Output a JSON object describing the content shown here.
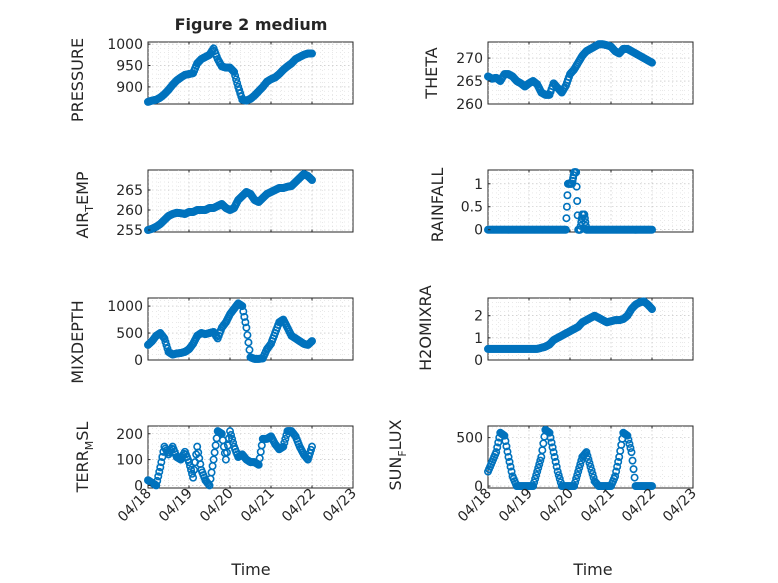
{
  "figure": {
    "title": "Figure 2 medium"
  },
  "chart_data": [
    {
      "type": "scatter",
      "name": "PRESSURE",
      "ylabel": "PRESSURE",
      "xlabel": "",
      "xlim": [
        0,
        5
      ],
      "ylim": [
        860,
        1005
      ],
      "yticks": [
        900,
        950,
        1000
      ],
      "ytick_labels": [
        "900",
        "950",
        "1000"
      ],
      "xticks": [
        0,
        1,
        2,
        3,
        4,
        5
      ],
      "xtick_labels": [],
      "grid": true,
      "marker": "o",
      "x": [
        0,
        0.1,
        0.2,
        0.3,
        0.4,
        0.5,
        0.6,
        0.7,
        0.8,
        0.9,
        1.0,
        1.1,
        1.2,
        1.3,
        1.4,
        1.5,
        1.6,
        1.7,
        1.8,
        1.9,
        2.0,
        2.1,
        2.2,
        2.3,
        2.4,
        2.5,
        2.6,
        2.7,
        2.8,
        2.9,
        3.0,
        3.1,
        3.2,
        3.3,
        3.4,
        3.5,
        3.6,
        3.7,
        3.8,
        3.9,
        4.0
      ],
      "y": [
        865,
        868,
        870,
        875,
        883,
        893,
        905,
        915,
        922,
        928,
        930,
        932,
        955,
        965,
        970,
        975,
        990,
        965,
        948,
        945,
        945,
        935,
        900,
        870,
        868,
        872,
        880,
        890,
        900,
        912,
        918,
        922,
        930,
        940,
        948,
        955,
        965,
        970,
        975,
        978,
        978
      ]
    },
    {
      "type": "scatter",
      "name": "THETA",
      "ylabel": "THETA",
      "xlabel": "",
      "xlim": [
        0,
        5
      ],
      "ylim": [
        260,
        273.5
      ],
      "yticks": [
        260,
        265,
        270
      ],
      "ytick_labels": [
        "260",
        "265",
        "270"
      ],
      "xticks": [
        0,
        1,
        2,
        3,
        4,
        5
      ],
      "xtick_labels": [],
      "grid": true,
      "marker": "o",
      "x": [
        0,
        0.1,
        0.2,
        0.3,
        0.4,
        0.5,
        0.6,
        0.7,
        0.8,
        0.9,
        1.0,
        1.1,
        1.2,
        1.3,
        1.4,
        1.5,
        1.6,
        1.7,
        1.8,
        1.9,
        2.0,
        2.1,
        2.2,
        2.3,
        2.4,
        2.5,
        2.6,
        2.7,
        2.8,
        2.9,
        3.0,
        3.1,
        3.2,
        3.3,
        3.4,
        3.5,
        3.6,
        3.7,
        3.8,
        3.9,
        4.0
      ],
      "y": [
        266,
        265.5,
        265.7,
        265,
        266.5,
        266.5,
        266,
        265,
        264.5,
        263.8,
        264.5,
        265,
        264.3,
        262.5,
        262,
        262,
        264.5,
        263.5,
        262.5,
        264,
        266.5,
        267.5,
        269,
        270.5,
        271.5,
        272,
        272.5,
        273,
        273,
        272.8,
        272.5,
        271.5,
        271,
        272,
        272,
        271.5,
        271,
        270.5,
        270,
        269.5,
        269
      ]
    },
    {
      "type": "scatter",
      "name": "AIR_TEMP",
      "ylabel": "AIR_TEMP",
      "xlabel": "",
      "xlim": [
        0,
        5
      ],
      "ylim": [
        254.5,
        270
      ],
      "yticks": [
        255,
        260,
        265
      ],
      "ytick_labels": [
        "255",
        "260",
        "265"
      ],
      "xticks": [
        0,
        1,
        2,
        3,
        4,
        5
      ],
      "xtick_labels": [],
      "grid": true,
      "marker": "o",
      "x": [
        0,
        0.1,
        0.2,
        0.3,
        0.4,
        0.5,
        0.6,
        0.7,
        0.8,
        0.9,
        1.0,
        1.1,
        1.2,
        1.3,
        1.4,
        1.5,
        1.6,
        1.7,
        1.8,
        1.9,
        2.0,
        2.1,
        2.2,
        2.3,
        2.4,
        2.5,
        2.6,
        2.7,
        2.8,
        2.9,
        3.0,
        3.1,
        3.2,
        3.3,
        3.4,
        3.5,
        3.6,
        3.7,
        3.8,
        3.9,
        4.0
      ],
      "y": [
        255,
        255.3,
        255.8,
        256.5,
        257.5,
        258.5,
        259,
        259.3,
        259.2,
        259,
        259.5,
        259.5,
        260,
        260,
        260,
        260.5,
        260.5,
        261,
        261.5,
        260.5,
        260,
        260.5,
        262.5,
        263.5,
        264.5,
        264,
        262.5,
        262,
        263,
        264,
        264.5,
        265,
        265.5,
        265.5,
        265.8,
        266,
        267,
        268,
        269,
        268.5,
        267.5
      ]
    },
    {
      "type": "scatter",
      "name": "RAINFALL",
      "ylabel": "RAINFALL",
      "xlabel": "",
      "xlim": [
        0,
        5
      ],
      "ylim": [
        -0.05,
        1.3
      ],
      "yticks": [
        0,
        0.5,
        1
      ],
      "ytick_labels": [
        "0",
        "0.5",
        "1"
      ],
      "xticks": [
        0,
        1,
        2,
        3,
        4,
        5
      ],
      "xtick_labels": [],
      "grid": true,
      "marker": "o",
      "x": [
        0,
        0.1,
        0.2,
        0.3,
        0.4,
        0.5,
        0.6,
        0.7,
        0.8,
        0.9,
        1.0,
        1.1,
        1.2,
        1.3,
        1.4,
        1.5,
        1.6,
        1.7,
        1.8,
        1.9,
        1.95,
        2.0,
        2.05,
        2.1,
        2.15,
        2.2,
        2.25,
        2.3,
        2.35,
        2.4,
        2.5,
        2.6,
        2.7,
        2.8,
        2.9,
        3.0,
        3.1,
        3.2,
        3.3,
        3.4,
        3.5,
        3.6,
        3.7,
        3.8,
        3.9,
        4.0
      ],
      "y": [
        0,
        0,
        0,
        0,
        0,
        0,
        0,
        0,
        0,
        0,
        0,
        0,
        0,
        0,
        0,
        0,
        0,
        0,
        0,
        0,
        1.0,
        1.0,
        1.0,
        1.25,
        1.25,
        0,
        0,
        0.33,
        0.33,
        0,
        0,
        0,
        0,
        0,
        0,
        0,
        0,
        0,
        0,
        0,
        0,
        0,
        0,
        0,
        0,
        0
      ]
    },
    {
      "type": "scatter",
      "name": "MIXDEPTH",
      "ylabel": "MIXDEPTH",
      "xlabel": "",
      "xlim": [
        0,
        5
      ],
      "ylim": [
        0,
        1150
      ],
      "yticks": [
        0,
        500,
        1000
      ],
      "ytick_labels": [
        "0",
        "500",
        "1000"
      ],
      "xticks": [
        0,
        1,
        2,
        3,
        4,
        5
      ],
      "xtick_labels": [],
      "grid": true,
      "marker": "o",
      "x": [
        0,
        0.1,
        0.2,
        0.3,
        0.4,
        0.5,
        0.6,
        0.7,
        0.8,
        0.9,
        1.0,
        1.1,
        1.2,
        1.3,
        1.4,
        1.5,
        1.6,
        1.7,
        1.8,
        1.9,
        2.0,
        2.1,
        2.2,
        2.3,
        2.4,
        2.5,
        2.6,
        2.7,
        2.8,
        2.9,
        3.0,
        3.1,
        3.2,
        3.3,
        3.4,
        3.5,
        3.6,
        3.7,
        3.8,
        3.9,
        4.0
      ],
      "y": [
        280,
        350,
        450,
        500,
        400,
        150,
        100,
        120,
        130,
        150,
        200,
        300,
        450,
        500,
        480,
        500,
        520,
        400,
        600,
        700,
        850,
        950,
        1050,
        1000,
        600,
        50,
        20,
        20,
        30,
        200,
        300,
        500,
        700,
        750,
        600,
        450,
        400,
        350,
        300,
        280,
        350
      ]
    },
    {
      "type": "scatter",
      "name": "H2OMIXRA",
      "ylabel": "H2OMIXRA",
      "xlabel": "",
      "xlim": [
        0,
        5
      ],
      "ylim": [
        0,
        2.8
      ],
      "yticks": [
        0,
        1,
        2
      ],
      "ytick_labels": [
        "0",
        "1",
        "2"
      ],
      "xticks": [
        0,
        1,
        2,
        3,
        4,
        5
      ],
      "xtick_labels": [],
      "grid": true,
      "marker": "o",
      "x": [
        0,
        0.1,
        0.2,
        0.3,
        0.4,
        0.5,
        0.6,
        0.7,
        0.8,
        0.9,
        1.0,
        1.1,
        1.2,
        1.3,
        1.4,
        1.5,
        1.6,
        1.7,
        1.8,
        1.9,
        2.0,
        2.1,
        2.2,
        2.3,
        2.4,
        2.5,
        2.6,
        2.7,
        2.8,
        2.9,
        3.0,
        3.1,
        3.2,
        3.3,
        3.4,
        3.5,
        3.6,
        3.7,
        3.8,
        3.9,
        4.0
      ],
      "y": [
        0.5,
        0.5,
        0.5,
        0.5,
        0.5,
        0.5,
        0.5,
        0.5,
        0.5,
        0.5,
        0.5,
        0.5,
        0.5,
        0.55,
        0.6,
        0.7,
        0.9,
        1.0,
        1.1,
        1.2,
        1.3,
        1.4,
        1.5,
        1.7,
        1.8,
        1.9,
        2.0,
        1.9,
        1.8,
        1.7,
        1.75,
        1.8,
        1.8,
        1.85,
        2.0,
        2.3,
        2.5,
        2.6,
        2.65,
        2.5,
        2.3
      ]
    },
    {
      "type": "scatter",
      "name": "TERR_MSL",
      "ylabel": "TERR_MSL",
      "xlabel": "",
      "xlim": [
        0,
        5
      ],
      "ylim": [
        -10,
        230
      ],
      "yticks": [
        0,
        100,
        200
      ],
      "ytick_labels": [
        "0",
        "100",
        "200"
      ],
      "xticks": [
        0,
        1,
        2,
        3,
        4,
        5
      ],
      "xtick_labels": [],
      "grid": true,
      "marker": "o",
      "x": [
        0,
        0.1,
        0.2,
        0.3,
        0.4,
        0.5,
        0.6,
        0.7,
        0.8,
        0.9,
        1.0,
        1.1,
        1.2,
        1.3,
        1.4,
        1.5,
        1.6,
        1.7,
        1.8,
        1.9,
        2.0,
        2.1,
        2.2,
        2.3,
        2.4,
        2.5,
        2.6,
        2.7,
        2.8,
        2.9,
        3.0,
        3.1,
        3.2,
        3.3,
        3.4,
        3.5,
        3.6,
        3.7,
        3.8,
        3.9,
        4.0
      ],
      "y": [
        20,
        10,
        0,
        70,
        150,
        120,
        150,
        110,
        100,
        130,
        90,
        30,
        150,
        60,
        20,
        0,
        100,
        210,
        200,
        100,
        210,
        150,
        110,
        120,
        100,
        90,
        90,
        80,
        180,
        180,
        190,
        160,
        140,
        150,
        210,
        210,
        190,
        150,
        120,
        100,
        150
      ]
    },
    {
      "type": "scatter",
      "name": "SUN_FLUX",
      "ylabel": "SUN_FLUX",
      "xlabel": "",
      "xlim": [
        0,
        5
      ],
      "ylim": [
        -20,
        620
      ],
      "yticks": [
        0,
        500
      ],
      "ytick_labels": [
        "0",
        "500"
      ],
      "xticks": [
        0,
        1,
        2,
        3,
        4,
        5
      ],
      "xtick_labels": [],
      "grid": true,
      "marker": "o",
      "x": [
        0,
        0.1,
        0.2,
        0.3,
        0.4,
        0.5,
        0.6,
        0.7,
        0.8,
        0.9,
        1.0,
        1.1,
        1.2,
        1.3,
        1.4,
        1.5,
        1.6,
        1.7,
        1.8,
        1.9,
        2.0,
        2.1,
        2.2,
        2.3,
        2.4,
        2.5,
        2.6,
        2.7,
        2.8,
        2.9,
        3.0,
        3.1,
        3.2,
        3.3,
        3.4,
        3.5,
        3.6,
        3.7,
        3.8,
        3.9,
        4.0
      ],
      "y": [
        150,
        250,
        350,
        550,
        520,
        300,
        100,
        0,
        0,
        0,
        0,
        0,
        150,
        300,
        580,
        550,
        350,
        150,
        0,
        0,
        0,
        0,
        150,
        300,
        350,
        200,
        50,
        0,
        0,
        0,
        0,
        100,
        300,
        550,
        520,
        350,
        0,
        0,
        0,
        0,
        0
      ]
    }
  ],
  "xaxis_labels": [
    "04/18",
    "04/19",
    "04/20",
    "04/21",
    "04/22",
    "04/23"
  ],
  "xlabel": "Time",
  "ylabel_parts": {
    "air_temp": {
      "main": "AIR",
      "sub": "T",
      "rest": "EMP"
    },
    "terr_msl": {
      "main": "TERR",
      "sub": "M",
      "rest": "SL"
    },
    "sun_flux": {
      "main": "SUN",
      "sub": "F",
      "rest": "LUX"
    }
  },
  "colors": {
    "marker": "#0072BD",
    "axis": "#262626"
  }
}
